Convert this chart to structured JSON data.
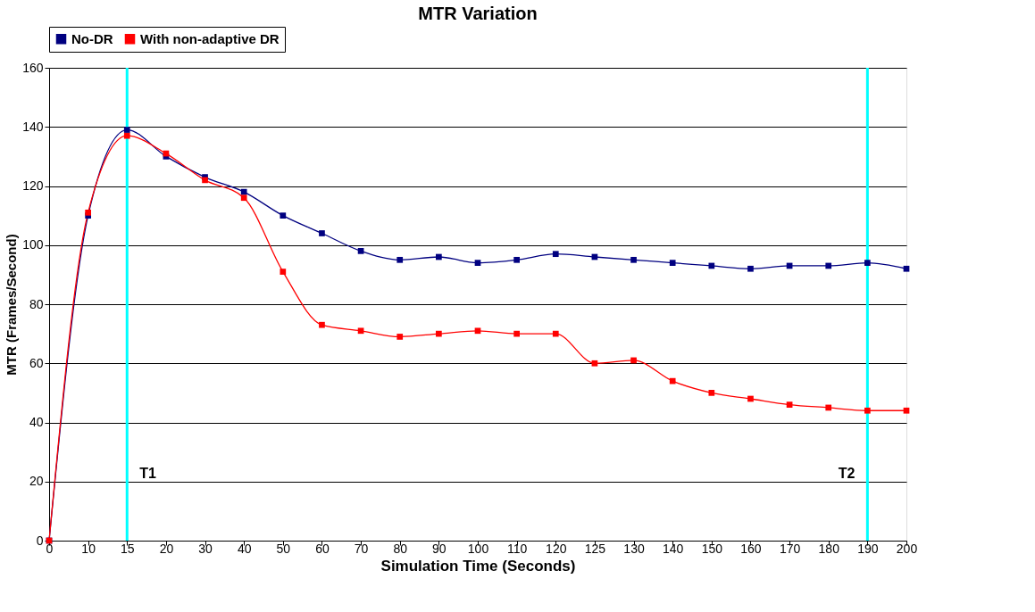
{
  "chart_data": {
    "type": "line",
    "title": "MTR Variation",
    "xlabel": "Simulation Time (Seconds)",
    "ylabel": "MTR (Frames/Second)",
    "categories": [
      "0",
      "10",
      "15",
      "20",
      "30",
      "40",
      "50",
      "60",
      "70",
      "80",
      "90",
      "100",
      "110",
      "120",
      "125",
      "130",
      "140",
      "150",
      "160",
      "170",
      "180",
      "190",
      "200"
    ],
    "series": [
      {
        "name": "No-DR",
        "color": "#000080",
        "values": [
          0,
          110,
          139,
          130,
          123,
          118,
          110,
          104,
          98,
          95,
          96,
          94,
          95,
          97,
          96,
          95,
          94,
          93,
          92,
          93,
          93,
          94,
          92
        ]
      },
      {
        "name": "With non-adaptive DR",
        "color": "#ff0000",
        "values": [
          0,
          111,
          137,
          131,
          122,
          116,
          91,
          73,
          71,
          69,
          70,
          71,
          70,
          70,
          60,
          61,
          54,
          50,
          48,
          46,
          45,
          44,
          44
        ]
      }
    ],
    "ylim": [
      0,
      160
    ],
    "yticks": [
      0,
      20,
      40,
      60,
      80,
      100,
      120,
      140,
      160
    ],
    "grid": "y",
    "legend": "top",
    "marker": "square",
    "line_style": "solid",
    "ref_lines": [
      {
        "axis": "x",
        "value": "15",
        "label": "T1",
        "color": "#00ffff"
      },
      {
        "axis": "x",
        "value": "190",
        "label": "T2",
        "color": "#00ffff"
      }
    ]
  }
}
